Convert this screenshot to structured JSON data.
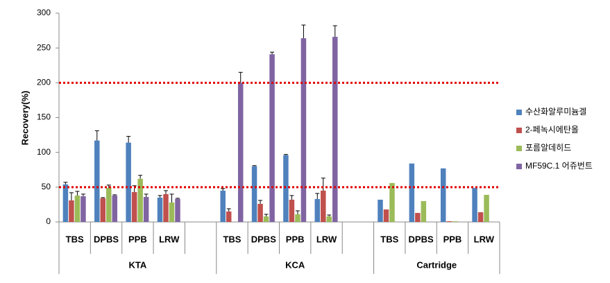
{
  "chart_data": {
    "type": "bar",
    "y_label": "Recovery(%)",
    "groups": [
      {
        "label": "KTA",
        "categories": [
          "TBS",
          "DPBS",
          "PPB",
          "LRW",
          null
        ]
      },
      {
        "label": "KCA",
        "categories": [
          "TBS",
          "DPBS",
          "PPB",
          "LRW",
          null
        ]
      },
      {
        "label": "Cartridge",
        "categories": [
          "TBS",
          "DPBS",
          "PPB",
          "LRW"
        ]
      }
    ],
    "series": [
      {
        "name": "수산화알루미늄겔",
        "color": "#4f81bd",
        "values": [
          54,
          117,
          114,
          35,
          null,
          45,
          80,
          96,
          33,
          null,
          32,
          84,
          77,
          49
        ],
        "errors": [
          3,
          14,
          9,
          3,
          null,
          3,
          1,
          1,
          8,
          null,
          null,
          null,
          null,
          null
        ]
      },
      {
        "name": "2-페녹시에탄올",
        "color": "#c0504d",
        "values": [
          31,
          34,
          43,
          40,
          null,
          15,
          26,
          32,
          45,
          null,
          18,
          13,
          1,
          14
        ],
        "errors": [
          11,
          1,
          9,
          5,
          null,
          4,
          5,
          6,
          18,
          null,
          null,
          null,
          null,
          null
        ]
      },
      {
        "name": "포름알데히드",
        "color": "#9bbb59",
        "values": [
          38,
          49,
          62,
          28,
          null,
          0,
          8,
          11,
          8,
          null,
          56,
          30,
          1,
          39
        ],
        "errors": [
          6,
          4,
          5,
          12,
          null,
          null,
          3,
          5,
          2,
          null,
          null,
          null,
          null,
          null
        ]
      },
      {
        "name": "MF59C.1 어쥬번트",
        "color": "#8064a2",
        "values": [
          37,
          38,
          36,
          33,
          null,
          200,
          241,
          264,
          266,
          null,
          null,
          null,
          null,
          null
        ],
        "errors": [
          3,
          1,
          4,
          1,
          null,
          15,
          3,
          19,
          16,
          null,
          null,
          null,
          null,
          null
        ]
      }
    ],
    "reference_lines": [
      {
        "value": 50,
        "color": "#e00000"
      },
      {
        "value": 200,
        "color": "#e00000"
      }
    ],
    "ylim": [
      0,
      300
    ],
    "yticks": [
      0,
      50,
      100,
      150,
      200,
      250,
      300
    ],
    "legend": "right"
  }
}
